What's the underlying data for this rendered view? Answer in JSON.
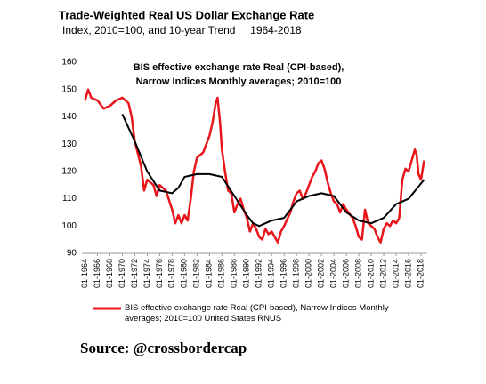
{
  "chart_data": {
    "type": "line",
    "title": "Trade-Weighted Real US Dollar Exchange Rate",
    "subtitle": "Index, 2010=100, and 10-year Trend     1964-2018",
    "annotations": [
      "BIS effective exchange rate Real (CPI-based),",
      "Narrow Indices Monthly averages; 2010=100"
    ],
    "source": "Source: @crossbordercap",
    "xlim": [
      1963.5,
      2019
    ],
    "ylim": [
      90,
      160
    ],
    "yticks": [
      90,
      100,
      110,
      120,
      130,
      140,
      150,
      160
    ],
    "xticks": [
      {
        "value": 1964,
        "label": "01-1964"
      },
      {
        "value": 1966,
        "label": "01-1966"
      },
      {
        "value": 1968,
        "label": "01-1968"
      },
      {
        "value": 1970,
        "label": "01-1970"
      },
      {
        "value": 1972,
        "label": "01-1972"
      },
      {
        "value": 1974,
        "label": "01-1974"
      },
      {
        "value": 1976,
        "label": "01-1976"
      },
      {
        "value": 1978,
        "label": "01-1978"
      },
      {
        "value": 1980,
        "label": "01-1980"
      },
      {
        "value": 1982,
        "label": "01-1982"
      },
      {
        "value": 1984,
        "label": "01-1984"
      },
      {
        "value": 1986,
        "label": "01-1986"
      },
      {
        "value": 1988,
        "label": "01-1988"
      },
      {
        "value": 1990,
        "label": "01-1990"
      },
      {
        "value": 1992,
        "label": "01-1992"
      },
      {
        "value": 1994,
        "label": "01-1994"
      },
      {
        "value": 1996,
        "label": "01-1996"
      },
      {
        "value": 1998,
        "label": "01-1998"
      },
      {
        "value": 2000,
        "label": "01-2000"
      },
      {
        "value": 2002,
        "label": "01-2002"
      },
      {
        "value": 2004,
        "label": "01-2004"
      },
      {
        "value": 2006,
        "label": "01-2006"
      },
      {
        "value": 2008,
        "label": "01-2008"
      },
      {
        "value": 2010,
        "label": "01-2010"
      },
      {
        "value": 2012,
        "label": "01-2012"
      },
      {
        "value": 2014,
        "label": "01-2014"
      },
      {
        "value": 2016,
        "label": "01-2016"
      },
      {
        "value": 2018,
        "label": "01-2018"
      }
    ],
    "series": [
      {
        "name": "BIS effective exchange rate Real (CPI-based), Narrow Indices Monthly averages; 2010=100 United States RNUS",
        "color": "#e8161b",
        "width": 2.5,
        "x": [
          1964,
          1964.5,
          1965,
          1966,
          1967,
          1968,
          1969,
          1970,
          1971,
          1971.5,
          1972,
          1973,
          1973.5,
          1974,
          1975,
          1975.5,
          1976,
          1977,
          1978,
          1978.5,
          1979,
          1979.5,
          1980,
          1980.5,
          1981,
          1981.5,
          1982,
          1983,
          1984,
          1984.5,
          1985,
          1985.3,
          1985.7,
          1986,
          1986.5,
          1987,
          1987.5,
          1988,
          1988.5,
          1989,
          1989.5,
          1990,
          1990.5,
          1991,
          1991.5,
          1992,
          1992.5,
          1993,
          1993.5,
          1994,
          1994.5,
          1995,
          1995.5,
          1996,
          1997,
          1997.5,
          1998,
          1998.5,
          1999,
          1999.5,
          2000,
          2000.5,
          2001,
          2001.5,
          2002,
          2002.5,
          2003,
          2003.5,
          2004,
          2004.5,
          2005,
          2005.5,
          2006,
          2007,
          2007.5,
          2008,
          2008.5,
          2009,
          2009.5,
          2010,
          2010.5,
          2011,
          2011.5,
          2012,
          2012.5,
          2013,
          2013.5,
          2014,
          2014.5,
          2015,
          2015.5,
          2016,
          2016.5,
          2017,
          2017.3,
          2017.6,
          2018,
          2018.5
        ],
        "values": [
          146,
          150,
          147,
          146,
          143,
          144,
          146,
          147,
          145,
          140,
          131,
          122,
          113,
          117,
          115,
          111,
          115,
          113,
          106,
          101,
          104,
          101,
          104,
          102,
          110,
          120,
          125,
          127,
          133,
          138,
          145,
          147,
          138,
          128,
          120,
          113,
          112,
          105,
          108,
          110,
          106,
          103,
          98,
          101,
          99,
          96,
          95,
          99,
          97,
          98,
          96,
          94,
          98,
          100,
          105,
          109,
          112,
          113,
          110,
          112,
          115,
          118,
          120,
          123,
          124,
          121,
          116,
          112,
          109,
          108,
          105,
          108,
          106,
          103,
          100,
          96,
          95,
          106,
          101,
          100,
          99,
          96,
          94,
          99,
          101,
          100,
          102,
          101,
          103,
          117,
          121,
          120,
          124,
          128,
          126,
          119,
          117,
          124
        ]
      },
      {
        "color": "#000000",
        "width": 2,
        "x": [
          1970,
          1972,
          1974,
          1976,
          1978,
          1979,
          1980,
          1982,
          1984,
          1986,
          1988,
          1990,
          1991,
          1992,
          1994,
          1996,
          1998,
          2000,
          2002,
          2004,
          2006,
          2008,
          2010,
          2012,
          2014,
          2016,
          2018.5
        ],
        "values": [
          141,
          131,
          120,
          113,
          112,
          114,
          118,
          119,
          119,
          118,
          111,
          104,
          101,
          100,
          102,
          103,
          109,
          111,
          112,
          111,
          105,
          102,
          101,
          103,
          108,
          110,
          117
        ]
      }
    ]
  }
}
